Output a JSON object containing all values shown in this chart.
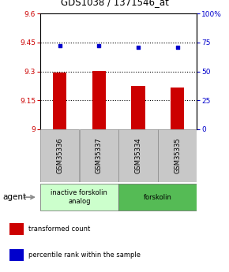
{
  "title": "GDS1038 / 1371546_at",
  "samples": [
    "GSM35336",
    "GSM35337",
    "GSM35334",
    "GSM35335"
  ],
  "bar_values": [
    9.295,
    9.302,
    9.225,
    9.218
  ],
  "dot_values": [
    72,
    72,
    71,
    71
  ],
  "ylim_left": [
    9.0,
    9.6
  ],
  "ylim_right": [
    0,
    100
  ],
  "yticks_left": [
    9.0,
    9.15,
    9.3,
    9.45,
    9.6
  ],
  "ytick_labels_left": [
    "9",
    "9.15",
    "9.3",
    "9.45",
    "9.6"
  ],
  "yticks_right": [
    0,
    25,
    50,
    75,
    100
  ],
  "ytick_labels_right": [
    "0",
    "25",
    "50",
    "75",
    "100%"
  ],
  "hlines": [
    9.15,
    9.3,
    9.45
  ],
  "bar_color": "#cc0000",
  "dot_color": "#0000cc",
  "bar_width": 0.35,
  "groups": [
    {
      "label": "inactive forskolin\nanalog",
      "indices": [
        0,
        1
      ],
      "color": "#ccffcc"
    },
    {
      "label": "forskolin",
      "indices": [
        2,
        3
      ],
      "color": "#55bb55"
    }
  ],
  "legend_items": [
    {
      "color": "#cc0000",
      "label": "transformed count"
    },
    {
      "color": "#0000cc",
      "label": "percentile rank within the sample"
    }
  ],
  "agent_label": "agent",
  "left_tick_color": "#cc0000",
  "right_tick_color": "#0000cc"
}
